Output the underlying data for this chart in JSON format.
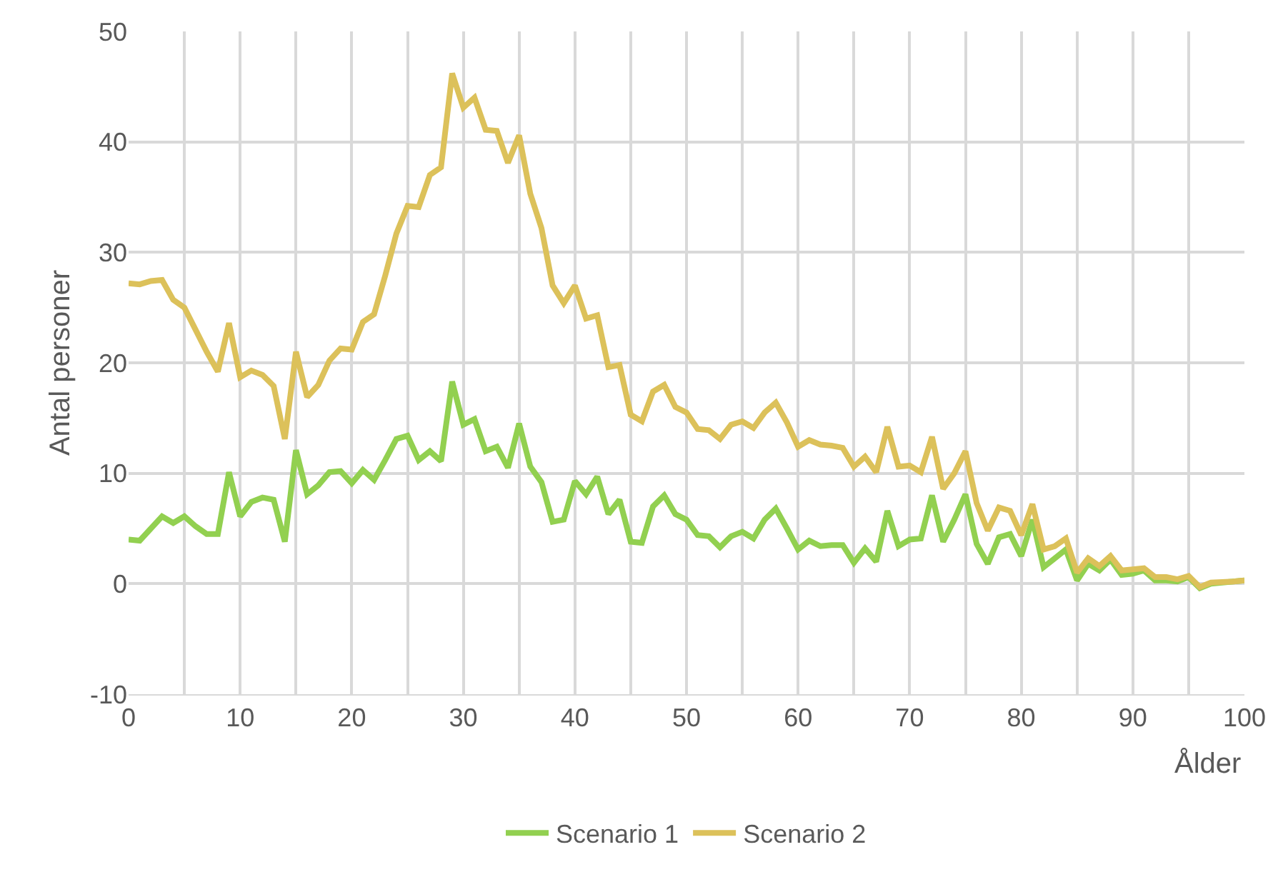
{
  "chart_data": {
    "type": "line",
    "xlabel": "Ålder",
    "ylabel": "Antal personer",
    "x": [
      0,
      1,
      2,
      3,
      4,
      5,
      6,
      7,
      8,
      9,
      10,
      11,
      12,
      13,
      14,
      15,
      16,
      17,
      18,
      19,
      20,
      21,
      22,
      23,
      24,
      25,
      26,
      27,
      28,
      29,
      30,
      31,
      32,
      33,
      34,
      35,
      36,
      37,
      38,
      39,
      40,
      41,
      42,
      43,
      44,
      45,
      46,
      47,
      48,
      49,
      50,
      51,
      52,
      53,
      54,
      55,
      56,
      57,
      58,
      59,
      60,
      61,
      62,
      63,
      64,
      65,
      66,
      67,
      68,
      69,
      70,
      71,
      72,
      73,
      74,
      75,
      76,
      77,
      78,
      79,
      80,
      81,
      82,
      83,
      84,
      85,
      86,
      87,
      88,
      89,
      90,
      91,
      92,
      93,
      94,
      95,
      96,
      97,
      98,
      99,
      100
    ],
    "series": [
      {
        "name": "Scenario 1",
        "color": "#92d050",
        "values": [
          4,
          3.9,
          5,
          6.1,
          5.5,
          6.1,
          5.2,
          4.5,
          4.5,
          10.1,
          6.1,
          7.4,
          7.8,
          7.6,
          3.8,
          12.1,
          8.1,
          8.9,
          10.1,
          10.2,
          9.1,
          10.3,
          9.4,
          11.2,
          13.1,
          13.4,
          11.2,
          12,
          11.1,
          18.3,
          14.4,
          14.9,
          12,
          12.4,
          10.5,
          14.5,
          10.6,
          9.2,
          5.6,
          5.8,
          9.3,
          8.1,
          9.7,
          6.3,
          7.6,
          3.8,
          3.7,
          7,
          8,
          6.3,
          5.8,
          4.4,
          4.3,
          3.3,
          4.3,
          4.7,
          4.1,
          5.8,
          6.8,
          5,
          3.1,
          3.9,
          3.4,
          3.5,
          3.5,
          1.9,
          3.2,
          2,
          6.6,
          3.4,
          4,
          4.1,
          8,
          3.8,
          5.8,
          8.1,
          3.6,
          1.8,
          4.2,
          4.5,
          2.5,
          5.8,
          1.5,
          2.3,
          3.1,
          0.3,
          1.8,
          1.2,
          2.2,
          0.8,
          0.9,
          1.2,
          0.3,
          0.3,
          0.2,
          0.6,
          -0.4,
          0,
          0.1,
          0.2,
          0.3
        ]
      },
      {
        "name": "Scenario 2",
        "color": "#dcc15a",
        "values": [
          27.2,
          27.1,
          27.4,
          27.5,
          25.7,
          25,
          23,
          21,
          19.2,
          23.6,
          18.7,
          19.3,
          18.9,
          17.9,
          13.1,
          21,
          16.9,
          18,
          20.2,
          21.3,
          21.2,
          23.7,
          24.4,
          27.9,
          31.7,
          34.2,
          34.1,
          37,
          37.7,
          46.2,
          43.1,
          44,
          41.1,
          41,
          38.1,
          40.6,
          35.3,
          32.2,
          27,
          25.4,
          27,
          24,
          24.3,
          19.6,
          19.8,
          15.3,
          14.7,
          17.4,
          18,
          16,
          15.5,
          14,
          13.9,
          13.1,
          14.4,
          14.7,
          14.1,
          15.5,
          16.4,
          14.6,
          12.4,
          13,
          12.6,
          12.5,
          12.3,
          10.6,
          11.5,
          10.1,
          14.2,
          10.6,
          10.7,
          10.1,
          13.3,
          8.6,
          10,
          12,
          7.3,
          4.8,
          6.9,
          6.6,
          4.4,
          7.2,
          3.1,
          3.4,
          4.1,
          1,
          2.3,
          1.6,
          2.5,
          1.2,
          1.3,
          1.4,
          0.6,
          0.6,
          0.4,
          0.7,
          -0.3,
          0.1,
          0.15,
          0.2,
          0.3
        ]
      }
    ],
    "xlim": [
      0,
      100
    ],
    "xticks": [
      0,
      {
        "value": 5,
        "label": null
      },
      10,
      {
        "value": 15,
        "label": null
      },
      20,
      {
        "value": 25,
        "label": null
      },
      30,
      {
        "value": 35,
        "label": null
      },
      40,
      {
        "value": 45,
        "label": null
      },
      50,
      {
        "value": 55,
        "label": null
      },
      60,
      {
        "value": 65,
        "label": null
      },
      70,
      {
        "value": 75,
        "label": null
      },
      80,
      {
        "value": 85,
        "label": null
      },
      90,
      {
        "value": 95,
        "label": null
      },
      100
    ],
    "ylim": [
      -10,
      50
    ],
    "yticks": [
      -10,
      0,
      10,
      20,
      30,
      40,
      50
    ],
    "grid": true,
    "legend": "bottom",
    "marker": "none",
    "line_style": "solid"
  }
}
